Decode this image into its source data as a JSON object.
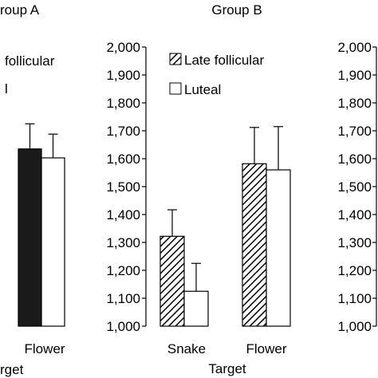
{
  "chart_data": [
    {
      "type": "bar",
      "title": "roup A",
      "legend": [
        "follicular",
        "l"
      ],
      "categories": [
        "Flower"
      ],
      "series": [
        {
          "name": "Late follicular",
          "fill": "solid-black",
          "values": [
            1635
          ],
          "errors": [
            90
          ]
        },
        {
          "name": "Luteal",
          "fill": "white",
          "values": [
            1603
          ],
          "errors": [
            85
          ]
        }
      ],
      "xlabel": "rget",
      "ylim": [
        1000,
        2000
      ]
    },
    {
      "type": "bar",
      "title": "Group B",
      "legend": [
        "Late follicular",
        "Luteal"
      ],
      "categories": [
        "Snake",
        "Flower"
      ],
      "series": [
        {
          "name": "Late follicular",
          "fill": "hatched",
          "values": [
            1322,
            1582
          ],
          "errors": [
            95,
            130
          ]
        },
        {
          "name": "Luteal",
          "fill": "white",
          "values": [
            1125,
            1560
          ],
          "errors": [
            100,
            155
          ]
        }
      ],
      "xlabel": "Target",
      "ylabel": "",
      "ylim": [
        1000,
        2000
      ],
      "yticks": [
        "1,000",
        "1,100",
        "1,200",
        "1,300",
        "1,400",
        "1,500",
        "1,600",
        "1,700",
        "1,800",
        "1,900",
        "2,000"
      ]
    },
    {
      "type": "bar",
      "title": "",
      "categories": [],
      "series": [],
      "ylim": [
        1000,
        2000
      ],
      "yticks": [
        "1,000",
        "1,100",
        "1,200",
        "1,300",
        "1,400",
        "1,500",
        "1,600",
        "1,700",
        "1,800",
        "1,900",
        "2,000"
      ]
    }
  ]
}
